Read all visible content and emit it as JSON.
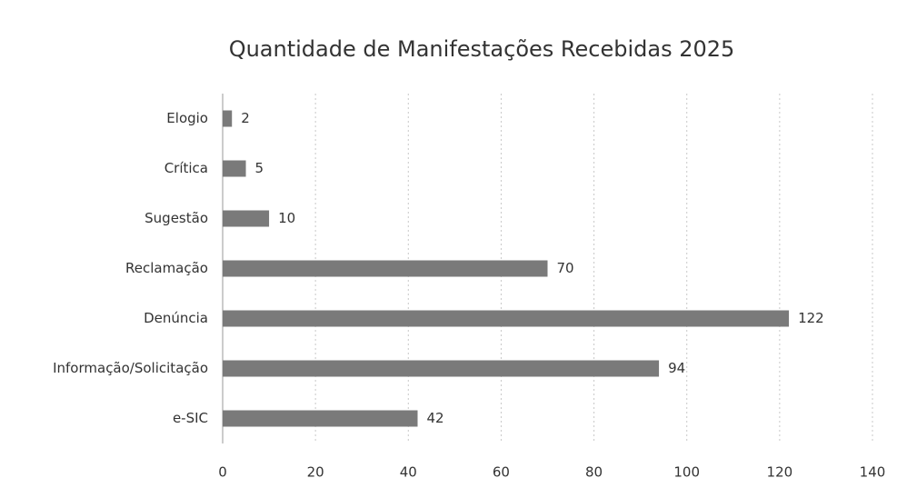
{
  "chart_data": {
    "type": "bar",
    "orientation": "horizontal",
    "title": "Quantidade de Manifestações Recebidas 2025",
    "categories": [
      "Elogio",
      "Crítica",
      "Sugestão",
      "Reclamação",
      "Denúncia",
      "Informação/Solicitação",
      "e-SIC"
    ],
    "values": [
      2,
      5,
      10,
      70,
      122,
      94,
      42
    ],
    "color": "#7a7a7a",
    "xlim": [
      0,
      140
    ],
    "xticks": [
      0,
      20,
      40,
      60,
      80,
      100,
      120,
      140
    ],
    "grid": true
  }
}
